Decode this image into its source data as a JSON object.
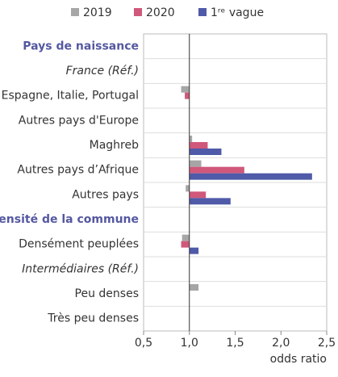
{
  "chart_data": {
    "type": "bar",
    "orientation": "horizontal",
    "categories": [
      "Pays de naissance",
      "France (Réf.)",
      "Espagne, Italie, Portugal",
      "Autres pays d'Europe",
      "Maghreb",
      "Autres pays d’Afrique",
      "Autres pays",
      "Densité de la commune",
      "Densément peuplées",
      "Intermédiaires (Réf.)",
      "Peu denses",
      "Très peu denses"
    ],
    "category_styles": [
      "header",
      "italic",
      "normal",
      "normal",
      "normal",
      "normal",
      "normal",
      "header",
      "normal",
      "italic",
      "normal",
      "normal"
    ],
    "series": [
      {
        "name": "2019",
        "color": "#a6a6a6",
        "values": [
          null,
          null,
          0.91,
          null,
          1.03,
          1.13,
          0.96,
          null,
          0.92,
          null,
          1.1,
          null
        ]
      },
      {
        "name": "2020",
        "color": "#d0587a",
        "values": [
          null,
          null,
          0.95,
          null,
          1.2,
          1.6,
          1.18,
          null,
          0.91,
          null,
          null,
          null
        ]
      },
      {
        "name": "1ʳᵉ vague",
        "color": "#4f5aa8",
        "values": [
          null,
          null,
          null,
          null,
          1.35,
          2.34,
          1.45,
          null,
          1.1,
          null,
          null,
          null
        ]
      }
    ],
    "base": 1,
    "xlim": [
      0.5,
      2.5
    ],
    "xticks": [
      {
        "value": 0.5,
        "label": "0,5"
      },
      {
        "value": 1,
        "label": "1,0"
      },
      {
        "value": 1.5,
        "label": "1,5"
      },
      {
        "value": 2,
        "label": "2,0"
      },
      {
        "value": 2.5,
        "label": "2,5"
      }
    ],
    "xlabel": "odds ratio",
    "legend": "top"
  }
}
